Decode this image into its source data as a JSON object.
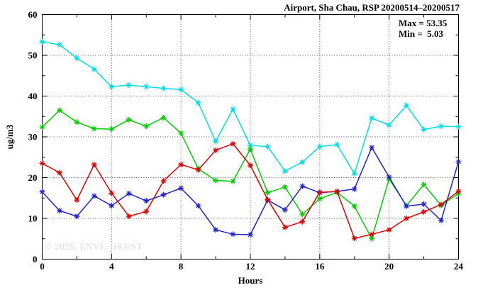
{
  "header": {
    "title": "Airport, Sha Chau, RSP 20200514–20200517"
  },
  "annotations": {
    "max_label": "Max = 53.35",
    "min_label": "Min =  5.03"
  },
  "watermark": "© 2025, ENVF, HKUST",
  "colors": {
    "series_cyan": "#00dde8",
    "series_green": "#00cc00",
    "series_red": "#dd0000",
    "series_blue": "#2222cc",
    "grid": "#555555",
    "axis": "#000000",
    "watermark": "#dadada"
  },
  "chart_data": {
    "type": "line",
    "title": "Airport, Sha Chau, RSP 20200514–20200517",
    "xlabel": "Hours",
    "ylabel": "ug/m3",
    "xlim": [
      0,
      24
    ],
    "ylim": [
      0,
      60
    ],
    "x_major_ticks": [
      0,
      4,
      8,
      12,
      16,
      20,
      24
    ],
    "x_minor_ticks": [
      2,
      6,
      10,
      14,
      18,
      22
    ],
    "y_major_ticks": [
      0,
      10,
      20,
      30,
      40,
      50,
      60
    ],
    "y_minor_ticks": [
      5,
      15,
      25,
      35,
      45,
      55
    ],
    "grid": {
      "x": [
        4,
        8,
        12,
        16,
        20
      ],
      "y": [
        10,
        20,
        30,
        40,
        50
      ]
    },
    "legend": "none",
    "marker": "asterisk",
    "stats": {
      "max": 53.35,
      "min": 5.03
    },
    "x": [
      0,
      1,
      2,
      3,
      4,
      5,
      6,
      7,
      8,
      9,
      10,
      11,
      12,
      13,
      14,
      15,
      16,
      17,
      18,
      19,
      20,
      21,
      22,
      23,
      24
    ],
    "series": [
      {
        "name": "cyan",
        "color": "#00dde8",
        "values": [
          53.35,
          52.6,
          49.3,
          46.6,
          42.3,
          42.7,
          42.3,
          41.9,
          41.6,
          38.4,
          28.9,
          36.8,
          27.9,
          27.6,
          21.6,
          23.8,
          27.6,
          28.1,
          21.0,
          34.6,
          32.9,
          37.7,
          31.8,
          32.6,
          32.5
        ]
      },
      {
        "name": "green",
        "color": "#00cc00",
        "values": [
          32.4,
          36.5,
          33.6,
          32.0,
          31.9,
          34.2,
          32.6,
          34.7,
          30.9,
          22.2,
          19.3,
          19.1,
          27.0,
          16.3,
          17.7,
          11.0,
          14.8,
          16.4,
          13.0,
          5.03,
          19.7,
          13.1,
          18.3,
          13.2,
          16.1
        ]
      },
      {
        "name": "blue",
        "color": "#2222cc",
        "values": [
          16.5,
          11.9,
          10.5,
          15.5,
          13.1,
          16.1,
          14.3,
          15.8,
          17.4,
          13.1,
          7.2,
          6.1,
          6.0,
          14.5,
          12.1,
          17.9,
          16.3,
          16.6,
          17.2,
          27.4,
          20.1,
          13.0,
          13.5,
          9.5,
          23.9
        ]
      },
      {
        "name": "red",
        "color": "#dd0000",
        "values": [
          23.5,
          21.2,
          14.5,
          23.2,
          16.2,
          10.5,
          11.7,
          19.2,
          23.2,
          21.9,
          26.7,
          28.3,
          23.0,
          14.6,
          7.8,
          9.2,
          16.4,
          16.6,
          5.1,
          6.1,
          7.2,
          10.0,
          11.6,
          13.4,
          16.7
        ]
      }
    ]
  }
}
